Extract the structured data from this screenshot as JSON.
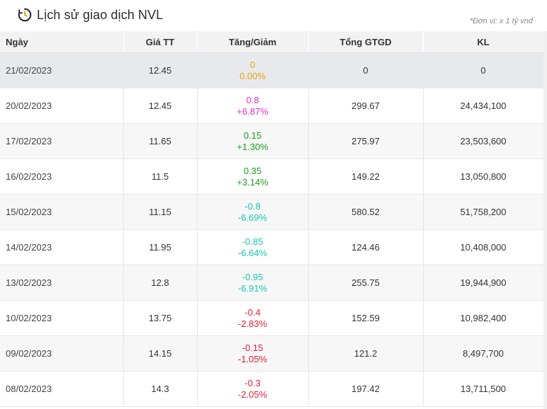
{
  "title": "Lịch sử giao dịch NVL",
  "unit_note": "*Đơn vị: x 1 tỷ vnđ",
  "icons": {
    "title_icon": "clock-history-icon"
  },
  "colors": {
    "reference": "#e6a600",
    "ceiling": "#e22ad4",
    "increase": "#1aa01a",
    "floor": "#18c8b3",
    "decrease": "#e0213a"
  },
  "columns": {
    "date": "Ngày",
    "price": "Giá TT",
    "change": "Tăng/Giảm",
    "value": "Tổng GTGD",
    "volume": "KL"
  },
  "rows": [
    {
      "date": "21/02/2023",
      "price": "12.45",
      "change": "0",
      "pct": "0.00%",
      "status": "ref",
      "value": "0",
      "volume": "0"
    },
    {
      "date": "20/02/2023",
      "price": "12.45",
      "change": "0.8",
      "pct": "+6.87%",
      "status": "up",
      "value": "299.67",
      "volume": "24,434,100"
    },
    {
      "date": "17/02/2023",
      "price": "11.65",
      "change": "0.15",
      "pct": "+1.30%",
      "status": "up-g",
      "value": "275.97",
      "volume": "23,503,600"
    },
    {
      "date": "16/02/2023",
      "price": "11.5",
      "change": "0.35",
      "pct": "+3.14%",
      "status": "up-g",
      "value": "149.22",
      "volume": "13,050,800"
    },
    {
      "date": "15/02/2023",
      "price": "11.15",
      "change": "-0.8",
      "pct": "-6.69%",
      "status": "down-c",
      "value": "580.52",
      "volume": "51,758,200"
    },
    {
      "date": "14/02/2023",
      "price": "11.95",
      "change": "-0.85",
      "pct": "-6.64%",
      "status": "down-c",
      "value": "124.46",
      "volume": "10,408,000"
    },
    {
      "date": "13/02/2023",
      "price": "12.8",
      "change": "-0.95",
      "pct": "-6.91%",
      "status": "down-c",
      "value": "255.75",
      "volume": "19,944,900"
    },
    {
      "date": "10/02/2023",
      "price": "13.75",
      "change": "-0.4",
      "pct": "-2.83%",
      "status": "down-r",
      "value": "152.59",
      "volume": "10,982,400"
    },
    {
      "date": "09/02/2023",
      "price": "14.15",
      "change": "-0.15",
      "pct": "-1.05%",
      "status": "down-r",
      "value": "121.2",
      "volume": "8,497,700"
    },
    {
      "date": "08/02/2023",
      "price": "14.3",
      "change": "-0.3",
      "pct": "-2.05%",
      "status": "down-r",
      "value": "197.42",
      "volume": "13,711,500"
    }
  ]
}
